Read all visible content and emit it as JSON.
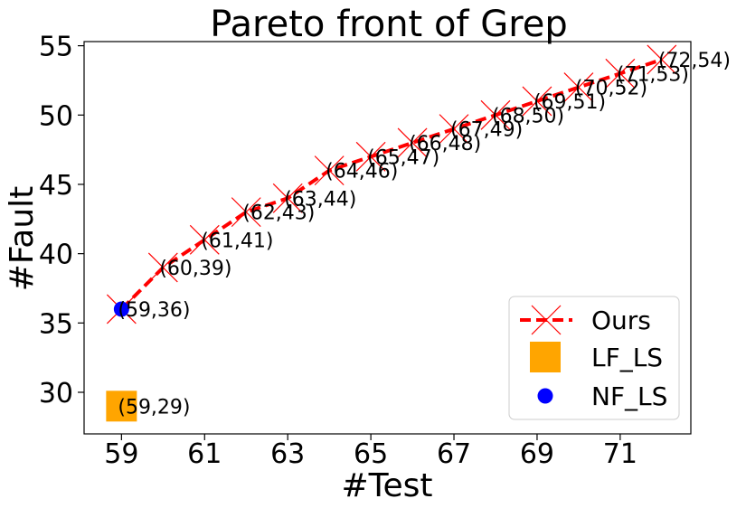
{
  "chart_data": {
    "type": "scatter",
    "title": "Pareto front of Grep",
    "xlabel": "#Test",
    "ylabel": "#Fault",
    "xlim": [
      58.1,
      72.7
    ],
    "ylim": [
      27.0,
      55.3
    ],
    "xticks": [
      59,
      61,
      63,
      65,
      67,
      69,
      71
    ],
    "yticks": [
      30,
      35,
      40,
      45,
      50,
      55
    ],
    "grid": false,
    "legend_position": "lower-right",
    "series": [
      {
        "name": "Ours",
        "marker": "x",
        "line": "dashed",
        "color": "#ff0000",
        "x": [
          59,
          60,
          61,
          62,
          63,
          64,
          65,
          66,
          67,
          68,
          69,
          70,
          71,
          72
        ],
        "y": [
          36,
          39,
          41,
          43,
          44,
          46,
          47,
          48,
          49,
          50,
          51,
          52,
          53,
          54
        ]
      },
      {
        "name": "LF_LS",
        "marker": "square",
        "color": "#ffa500",
        "x": [
          59
        ],
        "y": [
          29
        ]
      },
      {
        "name": "NF_LS",
        "marker": "circle",
        "color": "#0000ff",
        "x": [
          59
        ],
        "y": [
          36
        ]
      }
    ],
    "annotations": [
      {
        "text": "(59,36)",
        "x": 59,
        "y": 36
      },
      {
        "text": "(60,39)",
        "x": 60,
        "y": 39
      },
      {
        "text": "(61,41)",
        "x": 61,
        "y": 41
      },
      {
        "text": "(62,43)",
        "x": 62,
        "y": 43
      },
      {
        "text": "(63,44)",
        "x": 63,
        "y": 44
      },
      {
        "text": "(64,46)",
        "x": 64,
        "y": 46
      },
      {
        "text": "(65,47)",
        "x": 65,
        "y": 47
      },
      {
        "text": "(66,48)",
        "x": 66,
        "y": 48
      },
      {
        "text": "(67,49)",
        "x": 67,
        "y": 49
      },
      {
        "text": "(68,50)",
        "x": 68,
        "y": 50
      },
      {
        "text": "(69,51)",
        "x": 69,
        "y": 51
      },
      {
        "text": "(70,52)",
        "x": 70,
        "y": 52
      },
      {
        "text": "(71,53)",
        "x": 71,
        "y": 53
      },
      {
        "text": "(72,54)",
        "x": 72,
        "y": 54
      },
      {
        "text": "(59,29)",
        "x": 59,
        "y": 29
      }
    ]
  }
}
